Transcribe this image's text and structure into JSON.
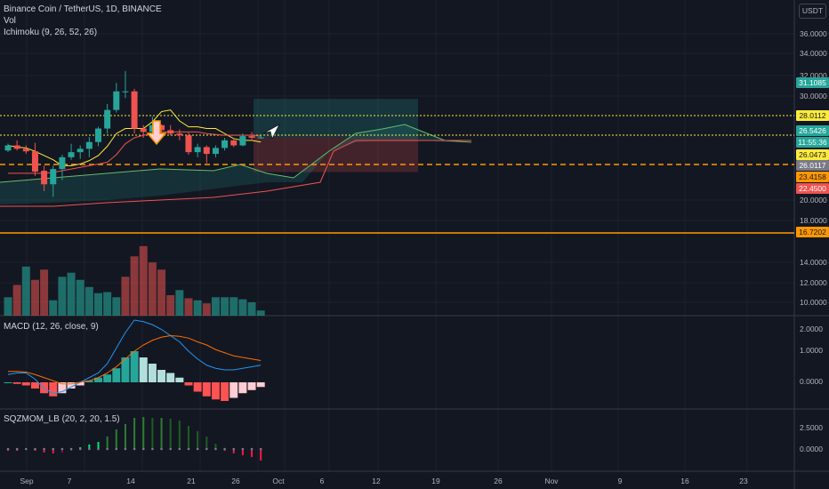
{
  "header": {
    "title": "Binance Coin / TetherUS, 1D, BINANCE",
    "vol": "Vol",
    "ichimoku": "Ichimoku (9, 26, 52, 26)",
    "macd": "MACD (12, 26, close, 9)",
    "sqz": "SQZMOM_LB (20, 2, 20, 1.5)",
    "currency": "USDT"
  },
  "price_ticks": [
    "36.0000",
    "34.0000",
    "32.0000",
    "30.0000",
    "20.0000",
    "18.0000",
    "14.0000",
    "12.0000",
    "10.0000"
  ],
  "macd_ticks": [
    "2.0000",
    "1.0000",
    "0.0000"
  ],
  "sqz_ticks": [
    "2.5000",
    "0.0000"
  ],
  "x_ticks": [
    "Sep",
    "7",
    "14",
    "21",
    "26",
    "Oct",
    "6",
    "12",
    "19",
    "26",
    "Nov",
    "9",
    "16",
    "23"
  ],
  "price_tags": [
    {
      "text": "31.1085",
      "bg": "#26a69a",
      "fg": "#ffffff"
    },
    {
      "text": "28.0112",
      "bg": "#ffeb3b",
      "fg": "#131722"
    },
    {
      "text": "26.5426",
      "bg": "#26a69a",
      "fg": "#ffffff"
    },
    {
      "text": "11:55:36",
      "bg": "#26a69a",
      "fg": "#ffffff"
    },
    {
      "text": "26.0473",
      "bg": "#ffeb3b",
      "fg": "#131722"
    },
    {
      "text": "26.0117",
      "bg": "#787b86",
      "fg": "#ffffff"
    },
    {
      "text": "23.4158",
      "bg": "#ff9800",
      "fg": "#131722"
    },
    {
      "text": "22.4500",
      "bg": "#ef5350",
      "fg": "#ffffff"
    },
    {
      "text": "16.7202",
      "bg": "#ff9800",
      "fg": "#131722"
    }
  ],
  "colors": {
    "up": "#26a69a",
    "down": "#ef5350",
    "tenkan": "#ffeb3b",
    "kijun": "#ef5350",
    "macd": "#2196f3",
    "signal": "#ff6d00",
    "level": "#ffeb3b",
    "orange": "#ff9800"
  },
  "icons": [
    "arrow-down-icon",
    "cursor-arrow-icon"
  ],
  "chart_data": {
    "type": "candlestick",
    "symbol": "BNBUSDT",
    "interval": "1D",
    "x": [
      "Sep 1",
      "Sep 2",
      "Sep 3",
      "Sep 4",
      "Sep 5",
      "Sep 6",
      "Sep 7",
      "Sep 8",
      "Sep 9",
      "Sep 10",
      "Sep 11",
      "Sep 12",
      "Sep 13",
      "Sep 14",
      "Sep 15",
      "Sep 16",
      "Sep 17",
      "Sep 18",
      "Sep 19",
      "Sep 20",
      "Sep 21",
      "Sep 22",
      "Sep 23",
      "Sep 24",
      "Sep 25",
      "Sep 26",
      "Sep 27",
      "Sep 28",
      "Sep 29"
    ],
    "ohlc": [
      [
        25.0,
        25.8,
        24.8,
        25.6
      ],
      [
        25.6,
        26.2,
        25.0,
        25.2
      ],
      [
        25.2,
        25.6,
        24.6,
        24.9
      ],
      [
        24.9,
        25.9,
        22.0,
        22.5
      ],
      [
        22.6,
        23.2,
        20.2,
        21.0
      ],
      [
        21.0,
        23.2,
        19.5,
        22.8
      ],
      [
        22.8,
        24.5,
        21.5,
        24.2
      ],
      [
        24.2,
        25.8,
        23.9,
        24.8
      ],
      [
        24.8,
        25.6,
        24.0,
        25.2
      ],
      [
        25.2,
        26.6,
        24.2,
        26.0
      ],
      [
        26.0,
        27.8,
        25.5,
        27.6
      ],
      [
        27.6,
        30.5,
        27.0,
        29.8
      ],
      [
        29.8,
        33.0,
        29.5,
        32.0
      ],
      [
        32.0,
        34.4,
        31.2,
        32.0
      ],
      [
        32.0,
        32.3,
        27.0,
        27.6
      ],
      [
        27.6,
        28.0,
        26.5,
        27.2
      ],
      [
        27.2,
        29.0,
        26.6,
        28.0
      ],
      [
        28.0,
        28.1,
        27.2,
        27.4
      ],
      [
        27.4,
        28.0,
        26.8,
        27.0
      ],
      [
        27.0,
        27.5,
        26.2,
        26.8
      ],
      [
        26.8,
        27.1,
        24.5,
        24.8
      ],
      [
        24.8,
        25.8,
        24.2,
        25.4
      ],
      [
        25.4,
        25.6,
        23.5,
        24.6
      ],
      [
        24.6,
        25.6,
        24.2,
        25.3
      ],
      [
        25.3,
        26.5,
        25.0,
        26.2
      ],
      [
        26.2,
        26.3,
        25.4,
        25.6
      ],
      [
        25.6,
        27.0,
        25.5,
        26.7
      ],
      [
        26.7,
        27.2,
        26.2,
        26.5
      ],
      [
        26.5,
        26.8,
        26.4,
        26.54
      ]
    ],
    "volume_up": [
      true,
      false,
      true,
      false,
      false,
      true,
      true,
      true,
      true,
      true,
      true,
      true,
      true,
      false,
      false,
      false,
      false,
      false,
      false,
      true,
      false,
      true,
      false,
      true,
      true,
      true,
      true,
      true,
      true
    ],
    "volume": [
      11.8,
      13.0,
      14.8,
      13.5,
      14.5,
      11.5,
      13.8,
      14.2,
      13.5,
      12.8,
      12.2,
      12.3,
      11.8,
      13.8,
      15.8,
      16.8,
      15.2,
      14.5,
      12.0,
      12.5,
      11.7,
      11.5,
      11.2,
      11.8,
      11.8,
      11.8,
      11.6,
      11.3,
      10.5
    ],
    "macd_hist": [
      0.0,
      -0.05,
      -0.1,
      -0.2,
      -0.35,
      -0.45,
      -0.35,
      -0.2,
      -0.1,
      0.05,
      0.15,
      0.25,
      0.45,
      0.8,
      1.0,
      0.8,
      0.6,
      0.4,
      0.3,
      0.15,
      -0.1,
      -0.3,
      -0.45,
      -0.55,
      -0.6,
      -0.5,
      -0.35,
      -0.25,
      -0.15
    ],
    "macd_line": [
      0.25,
      0.3,
      0.3,
      0.1,
      -0.2,
      -0.35,
      -0.3,
      -0.15,
      0.0,
      0.15,
      0.3,
      0.6,
      1.1,
      1.6,
      2.0,
      1.95,
      1.85,
      1.7,
      1.5,
      1.3,
      1.0,
      0.75,
      0.55,
      0.45,
      0.4,
      0.4,
      0.45,
      0.5,
      0.55
    ],
    "signal_line": [
      0.35,
      0.35,
      0.33,
      0.25,
      0.15,
      0.05,
      -0.05,
      -0.05,
      0.0,
      0.05,
      0.15,
      0.3,
      0.5,
      0.75,
      1.0,
      1.2,
      1.35,
      1.45,
      1.5,
      1.48,
      1.42,
      1.3,
      1.2,
      1.05,
      0.95,
      0.85,
      0.8,
      0.75,
      0.7
    ],
    "sqz": [
      -0.2,
      -0.2,
      -0.1,
      -0.2,
      -0.4,
      -0.5,
      -0.4,
      -0.2,
      0.2,
      0.5,
      0.8,
      1.4,
      2.2,
      2.8,
      3.5,
      3.6,
      3.5,
      3.5,
      3.4,
      3.2,
      2.6,
      2.0,
      1.4,
      0.6,
      -0.2,
      -0.5,
      -0.7,
      -0.9,
      -1.3
    ],
    "tenkan": [
      25.6,
      25.4,
      25.3,
      24.9,
      24.4,
      23.9,
      23.2,
      23.2,
      23.4,
      23.8,
      24.4,
      25.5,
      27.0,
      27.6,
      27.6,
      27.6,
      28.4,
      29.6,
      29.8,
      28.5,
      27.8,
      27.8,
      27.6,
      27.6,
      27.0,
      26.4,
      26.2,
      26.2,
      26.0
    ],
    "kijun": [
      22.3,
      22.3,
      22.3,
      22.3,
      22.3,
      22.4,
      22.6,
      22.8,
      23.0,
      23.2,
      23.4,
      23.6,
      24.5,
      25.8,
      26.5,
      26.8,
      27.0,
      27.2,
      27.2,
      27.2,
      27.2,
      27.2,
      27.0,
      26.9,
      26.8,
      26.8,
      26.8,
      26.8,
      26.7
    ],
    "horizontal_levels": [
      28.0112,
      26.0473,
      23.4158,
      16.7202
    ],
    "position": {
      "entry": 26.5426,
      "target": 31.1085,
      "stop": 22.45
    }
  }
}
